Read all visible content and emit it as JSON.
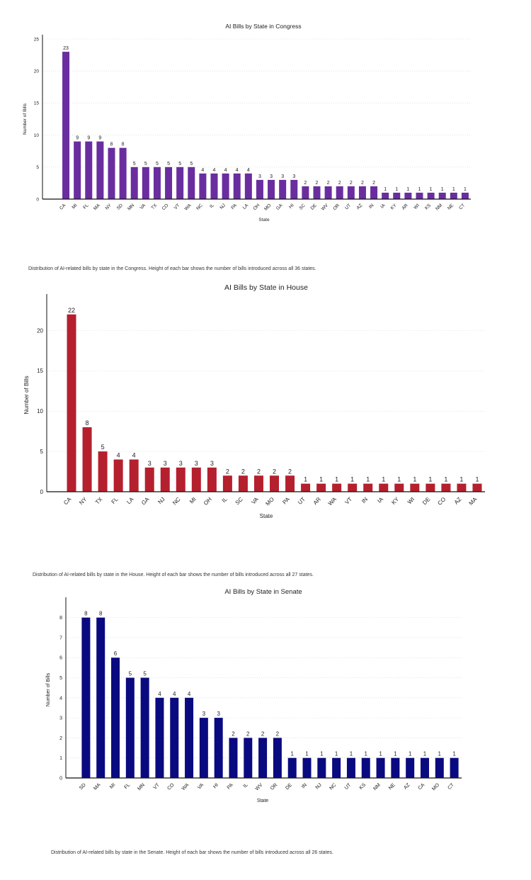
{
  "chart_data": [
    {
      "type": "bar",
      "title": "AI Bills by State in Congress",
      "xlabel": "State",
      "ylabel": "Number of Bills",
      "categories": [
        "CA",
        "MI",
        "FL",
        "MA",
        "NY",
        "SD",
        "MN",
        "VA",
        "TX",
        "CO",
        "VT",
        "WA",
        "NC",
        "IL",
        "NJ",
        "PA",
        "LA",
        "OH",
        "MO",
        "GA",
        "HI",
        "SC",
        "DE",
        "WV",
        "OR",
        "UT",
        "AZ",
        "IN",
        "IA",
        "KY",
        "AR",
        "WI",
        "KS",
        "NM",
        "NE",
        "CT"
      ],
      "values": [
        23,
        9,
        9,
        9,
        8,
        8,
        5,
        5,
        5,
        5,
        5,
        5,
        4,
        4,
        4,
        4,
        4,
        3,
        3,
        3,
        3,
        2,
        2,
        2,
        2,
        2,
        2,
        2,
        1,
        1,
        1,
        1,
        1,
        1,
        1,
        1
      ],
      "ylim": [
        0,
        25
      ],
      "yticks": [
        0,
        5,
        10,
        15,
        20,
        25
      ],
      "grid": true,
      "color": "#6a2d9f",
      "caption": "Distribution of AI-related bills by state in the Congress. Height of each bar shows the number of bills introduced across all 36 states."
    },
    {
      "type": "bar",
      "title": "AI Bills by State in House",
      "xlabel": "State",
      "ylabel": "Number of Bills",
      "categories": [
        "CA",
        "NY",
        "TX",
        "FL",
        "LA",
        "GA",
        "NJ",
        "NC",
        "MI",
        "OH",
        "IL",
        "SC",
        "VA",
        "MO",
        "PA",
        "UT",
        "AR",
        "WA",
        "VT",
        "IN",
        "IA",
        "KY",
        "WI",
        "DE",
        "CO",
        "AZ",
        "MA"
      ],
      "values": [
        22,
        8,
        5,
        4,
        4,
        3,
        3,
        3,
        3,
        3,
        2,
        2,
        2,
        2,
        2,
        1,
        1,
        1,
        1,
        1,
        1,
        1,
        1,
        1,
        1,
        1,
        1
      ],
      "ylim": [
        0,
        24
      ],
      "yticks": [
        0,
        5,
        10,
        15,
        20
      ],
      "grid": true,
      "color": "#b5202e",
      "caption": "Distribution of AI-related bills by state in the House. Height of each bar shows the number of bills introduced across all 27 states."
    },
    {
      "type": "bar",
      "title": "AI Bills by State in Senate",
      "xlabel": "State",
      "ylabel": "Number of Bills",
      "categories": [
        "SD",
        "MA",
        "MI",
        "FL",
        "MN",
        "VT",
        "CO",
        "WA",
        "VA",
        "HI",
        "PA",
        "IL",
        "WV",
        "OR",
        "DE",
        "IN",
        "NJ",
        "NC",
        "UT",
        "KS",
        "NM",
        "NE",
        "AZ",
        "CA",
        "MO",
        "CT"
      ],
      "values": [
        8,
        8,
        6,
        5,
        5,
        4,
        4,
        4,
        3,
        3,
        2,
        2,
        2,
        2,
        1,
        1,
        1,
        1,
        1,
        1,
        1,
        1,
        1,
        1,
        1,
        1
      ],
      "ylim": [
        0,
        8.8
      ],
      "yticks": [
        0,
        1,
        2,
        3,
        4,
        5,
        6,
        7,
        8
      ],
      "grid": true,
      "color": "#0a0a80",
      "caption": "Distribution of AI-related bills by state in the Senate. Height of each bar shows the number of bills introduced across all 26 states."
    }
  ]
}
